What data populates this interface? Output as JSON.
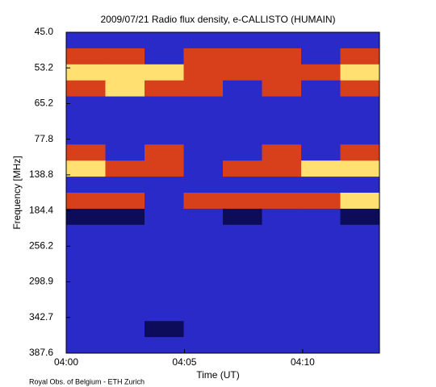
{
  "chart_data": {
    "type": "spectrogram",
    "title": "2009/07/21  Radio flux density, e-CALLISTO (HUMAIN)",
    "xlabel": "Time (UT)",
    "ylabel": "Frequency [MHz]",
    "footer": "Royal Obs. of Belgium - ETH Zurich",
    "xlim": [
      0,
      13.25
    ],
    "xticks": [
      {
        "value": 0,
        "label": "04:00"
      },
      {
        "value": 5,
        "label": "04:05"
      },
      {
        "value": 10,
        "label": "04:10"
      }
    ],
    "yticks": [
      {
        "value": 45,
        "label": "45.0"
      },
      {
        "value": 53.2,
        "label": "53.2"
      },
      {
        "value": 65.2,
        "label": "65.2"
      },
      {
        "value": 77.8,
        "label": "77.8"
      },
      {
        "value": 138.8,
        "label": "138.8"
      },
      {
        "value": 184.4,
        "label": "184.4"
      },
      {
        "value": 256.2,
        "label": "256.2"
      },
      {
        "value": 298.9,
        "label": "298.9"
      },
      {
        "value": 342.7,
        "label": "342.7"
      },
      {
        "value": 387.6,
        "label": "387.6"
      }
    ],
    "colorscale": [
      "#0c0c5a",
      "#2a2ac8",
      "#d8401c",
      "#ffe070"
    ],
    "z": [
      [
        1,
        1,
        1,
        1,
        1,
        1,
        1,
        1
      ],
      [
        2,
        2,
        1,
        2,
        2,
        2,
        1,
        2
      ],
      [
        3,
        3,
        3,
        2,
        2,
        2,
        2,
        3
      ],
      [
        2,
        3,
        2,
        2,
        1,
        2,
        1,
        2
      ],
      [
        1,
        1,
        1,
        1,
        1,
        1,
        1,
        1
      ],
      [
        1,
        1,
        1,
        1,
        1,
        1,
        1,
        1
      ],
      [
        1,
        1,
        1,
        1,
        1,
        1,
        1,
        1
      ],
      [
        2,
        1,
        2,
        1,
        1,
        2,
        1,
        2
      ],
      [
        3,
        2,
        2,
        1,
        2,
        2,
        3,
        3
      ],
      [
        1,
        1,
        1,
        1,
        1,
        1,
        1,
        1
      ],
      [
        2,
        2,
        1,
        2,
        2,
        2,
        2,
        3
      ],
      [
        0,
        0,
        1,
        1,
        0,
        1,
        1,
        0
      ],
      [
        1,
        1,
        1,
        1,
        1,
        1,
        1,
        1
      ],
      [
        1,
        1,
        1,
        1,
        1,
        1,
        1,
        1
      ],
      [
        1,
        1,
        1,
        1,
        1,
        1,
        1,
        1
      ],
      [
        1,
        1,
        1,
        1,
        1,
        1,
        1,
        1
      ],
      [
        1,
        1,
        1,
        1,
        1,
        1,
        1,
        1
      ],
      [
        1,
        1,
        1,
        1,
        1,
        1,
        1,
        1
      ],
      [
        1,
        1,
        0,
        1,
        1,
        1,
        1,
        1
      ],
      [
        1,
        1,
        1,
        1,
        1,
        1,
        1,
        1
      ]
    ]
  }
}
